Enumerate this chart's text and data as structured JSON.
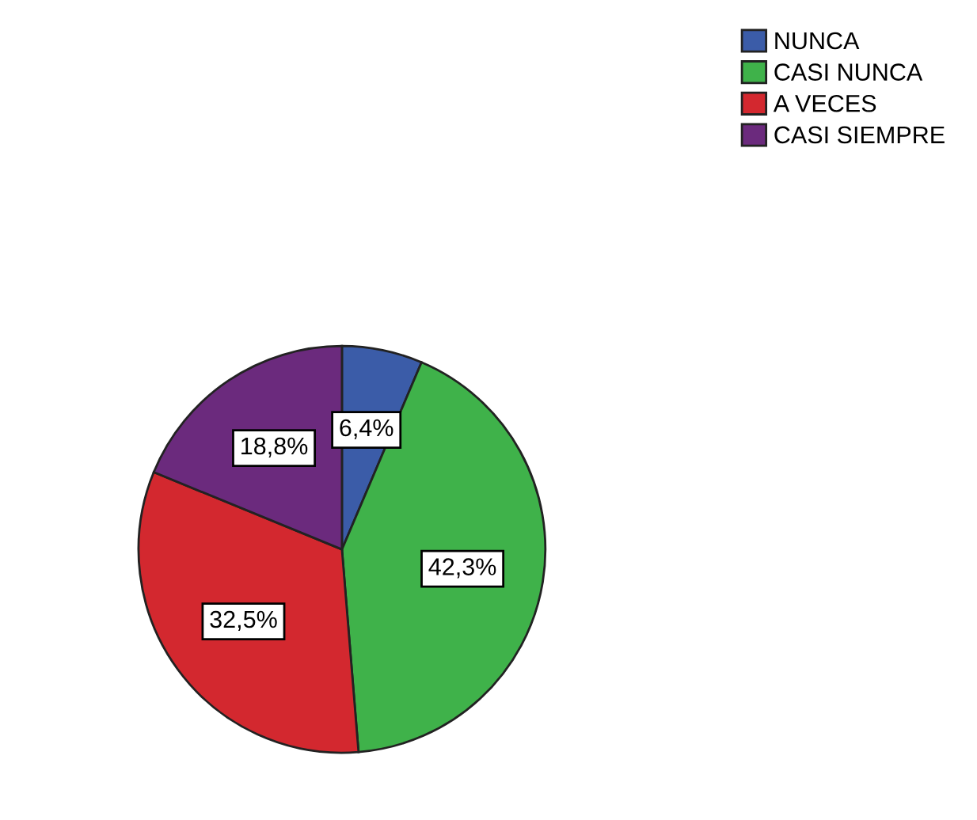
{
  "chart_data": {
    "type": "pie",
    "categories": [
      "NUNCA",
      "CASI NUNCA",
      "A VECES",
      "CASI SIEMPRE"
    ],
    "values": [
      6.4,
      42.3,
      32.5,
      18.8
    ],
    "value_labels": [
      "6,4%",
      "42,3%",
      "32,5%",
      "18,8%"
    ],
    "colors": [
      "#3b5ca8",
      "#3fb24a",
      "#d3282f",
      "#6b2a7d"
    ],
    "legend": "top right"
  }
}
